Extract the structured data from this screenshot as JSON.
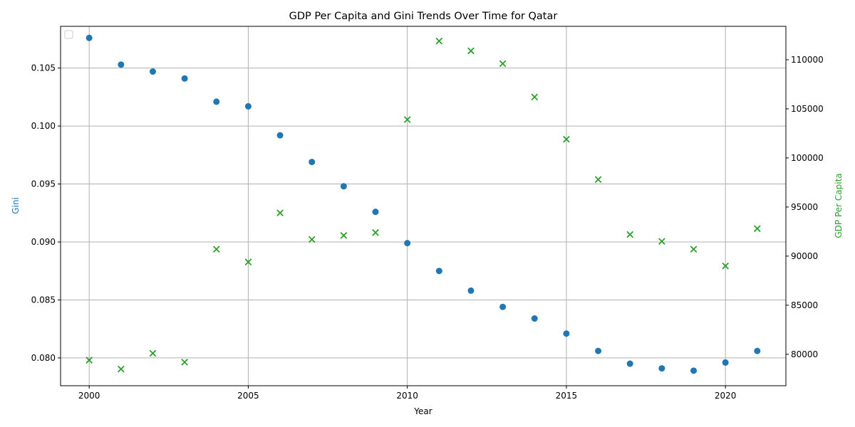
{
  "chart_data": {
    "type": "scatter",
    "title": "GDP Per Capita and Gini Trends Over Time for Qatar",
    "xlabel": "Year",
    "x": [
      2000,
      2001,
      2002,
      2003,
      2004,
      2005,
      2006,
      2007,
      2008,
      2009,
      2010,
      2011,
      2012,
      2013,
      2014,
      2015,
      2016,
      2017,
      2018,
      2019,
      2020,
      2021
    ],
    "xlim": [
      1999.1,
      2021.9
    ],
    "xticks": [
      2000,
      2005,
      2010,
      2015,
      2020
    ],
    "grid": true,
    "legend": "top-left (empty)",
    "left_axis": {
      "label": "Gini",
      "color": "#1f77b4",
      "ylim": [
        0.0776,
        0.1086
      ],
      "ticks": [
        0.08,
        0.085,
        0.09,
        0.095,
        0.1,
        0.105
      ],
      "tick_format": 3
    },
    "right_axis": {
      "label": "GDP Per Capita",
      "color": "#2ca02c",
      "ylim": [
        76800,
        113400
      ],
      "ticks": [
        80000,
        85000,
        90000,
        95000,
        100000,
        105000,
        110000
      ],
      "tick_format": 0
    },
    "series": [
      {
        "axis": "left",
        "marker": "circle",
        "color": "#1f77b4",
        "values": [
          0.1076,
          0.1053,
          0.1047,
          0.1041,
          0.1021,
          0.1017,
          0.0992,
          0.0969,
          0.0948,
          0.0926,
          0.0899,
          0.0875,
          0.0858,
          0.0844,
          0.0834,
          0.0821,
          0.0806,
          0.0795,
          0.0791,
          0.0789,
          0.0796,
          0.0806
        ]
      },
      {
        "axis": "right",
        "marker": "x",
        "color": "#2ca02c",
        "values": [
          79400,
          78500,
          80100,
          79200,
          90700,
          89400,
          94400,
          91700,
          92100,
          92400,
          103900,
          111900,
          110900,
          109600,
          106200,
          101900,
          97800,
          92200,
          91500,
          90700,
          89000,
          92800
        ]
      }
    ]
  }
}
